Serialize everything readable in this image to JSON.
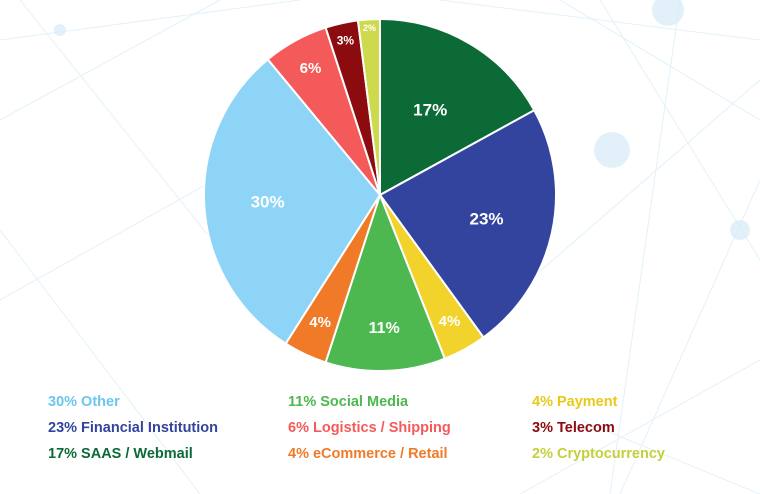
{
  "chart_data": {
    "type": "pie",
    "start_angle_deg": 0,
    "direction": "clockwise",
    "slices": [
      {
        "label": "SAAS / Webmail",
        "value": 17,
        "data_label": "17%",
        "legend": "17% SAAS / Webmail",
        "color": "#0b6a35",
        "legend_color": "#0b6a35"
      },
      {
        "label": "Financial Institution",
        "value": 23,
        "data_label": "23%",
        "legend": "23% Financial Institution",
        "color": "#33449e",
        "legend_color": "#33449e"
      },
      {
        "label": "Payment",
        "value": 4,
        "data_label": "4%",
        "legend": "4% Payment",
        "color": "#f2d32b",
        "legend_color": "#e8c91a"
      },
      {
        "label": "Social Media",
        "value": 11,
        "data_label": "11%",
        "legend": "11% Social Media",
        "color": "#4db84f",
        "legend_color": "#4db84f"
      },
      {
        "label": "eCommerce / Retail",
        "value": 4,
        "data_label": "4%",
        "legend": "4% eCommerce / Retail",
        "color": "#f07a27",
        "legend_color": "#f07a27"
      },
      {
        "label": "Other",
        "value": 30,
        "data_label": "30%",
        "legend": "30% Other",
        "color": "#8dd4f6",
        "legend_color": "#6cc6ef"
      },
      {
        "label": "Logistics / Shipping",
        "value": 6,
        "data_label": "6%",
        "legend": "6% Logistics / Shipping",
        "color": "#f55a5a",
        "legend_color": "#f55a5a"
      },
      {
        "label": "Telecom",
        "value": 3,
        "data_label": "3%",
        "legend": "3% Telecom",
        "color": "#8b0b0f",
        "legend_color": "#8b0b0f"
      },
      {
        "label": "Cryptocurrency",
        "value": 2,
        "data_label": "2%",
        "legend": "2% Cryptocurrency",
        "color": "#cfd94e",
        "legend_color": "#c4cf3c"
      }
    ],
    "legend_order": [
      "Other",
      "Financial Institution",
      "SAAS / Webmail",
      "Social Media",
      "Logistics / Shipping",
      "eCommerce / Retail",
      "Payment",
      "Telecom",
      "Cryptocurrency"
    ],
    "legend_placement": "bottom",
    "legend_columns": 3
  }
}
